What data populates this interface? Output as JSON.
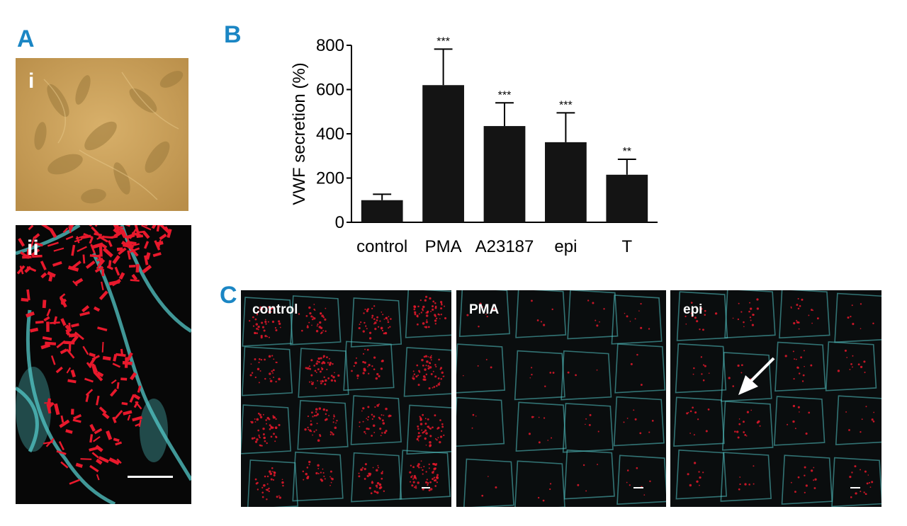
{
  "panels": {
    "A": {
      "letter": "A",
      "sub_i": "i",
      "sub_ii": "ii"
    },
    "B": {
      "letter": "B"
    },
    "C": {
      "letter": "C",
      "images": [
        {
          "label": "control"
        },
        {
          "label": "PMA"
        },
        {
          "label": "epi"
        }
      ]
    }
  },
  "colors": {
    "panel_letter": "#1b86c4",
    "bar_fill": "#141414",
    "micro_red": "#e8192c",
    "micro_cyan": "#53c8c8",
    "phase_bg": "#c9a058"
  },
  "chart_data": {
    "type": "bar",
    "categories": [
      "control",
      "PMA",
      "A23187",
      "epi",
      "T"
    ],
    "values": [
      100,
      620,
      435,
      362,
      215
    ],
    "errors_upper": [
      27,
      163,
      105,
      133,
      70
    ],
    "significance": [
      "",
      "***",
      "***",
      "***",
      "**"
    ],
    "ylabel": "VWF secretion (%)",
    "xlabel": "",
    "ylim": [
      0,
      800
    ],
    "yticks": [
      0,
      200,
      400,
      600,
      800
    ],
    "grid": false
  }
}
